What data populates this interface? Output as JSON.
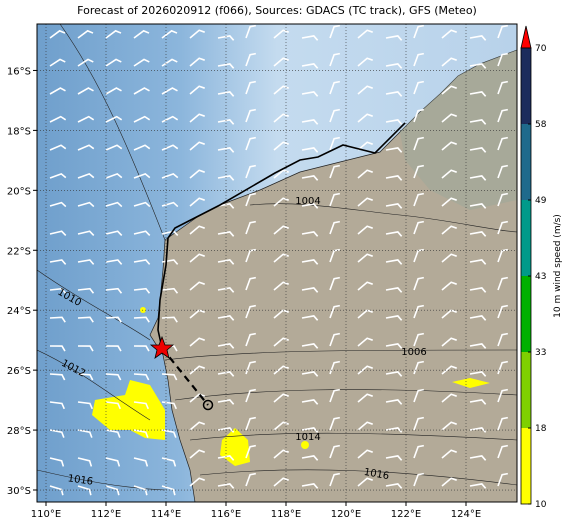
{
  "chart_data": {
    "type": "map",
    "title": "Forecast of 2026020912 (f066), Sources: GDACS (TC track), GFS (Meteo)",
    "xlim": [
      109.7,
      125.7
    ],
    "ylim": [
      -30.4,
      -14.45
    ],
    "xticks": [
      {
        "value": 110,
        "label": "110°E"
      },
      {
        "value": 112,
        "label": "112°E"
      },
      {
        "value": 114,
        "label": "114°E"
      },
      {
        "value": 116,
        "label": "116°E"
      },
      {
        "value": 118,
        "label": "118°E"
      },
      {
        "value": 120,
        "label": "120°E"
      },
      {
        "value": 122,
        "label": "122°E"
      },
      {
        "value": 124,
        "label": "124°E"
      }
    ],
    "yticks": [
      {
        "value": -16,
        "label": "16°S"
      },
      {
        "value": -18,
        "label": "18°S"
      },
      {
        "value": -20,
        "label": "20°S"
      },
      {
        "value": -22,
        "label": "22°S"
      },
      {
        "value": -24,
        "label": "24°S"
      },
      {
        "value": -26,
        "label": "26°S"
      },
      {
        "value": -28,
        "label": "28°S"
      },
      {
        "value": -30,
        "label": "30°S"
      }
    ],
    "grid": true,
    "isobar_labels": [
      "1010",
      "1012",
      "1016",
      "1004",
      "1006",
      "1014",
      "1016"
    ],
    "colorbar": {
      "label": "10 m wind speed (m/s)",
      "ticks": [
        10,
        18,
        33,
        43,
        49,
        58,
        70
      ],
      "colors": [
        "#ffff00",
        "#7fd000",
        "#00b000",
        "#009a8a",
        "#1f6a8c",
        "#1c2c5c"
      ],
      "extend_color": "#ff0000"
    }
  }
}
